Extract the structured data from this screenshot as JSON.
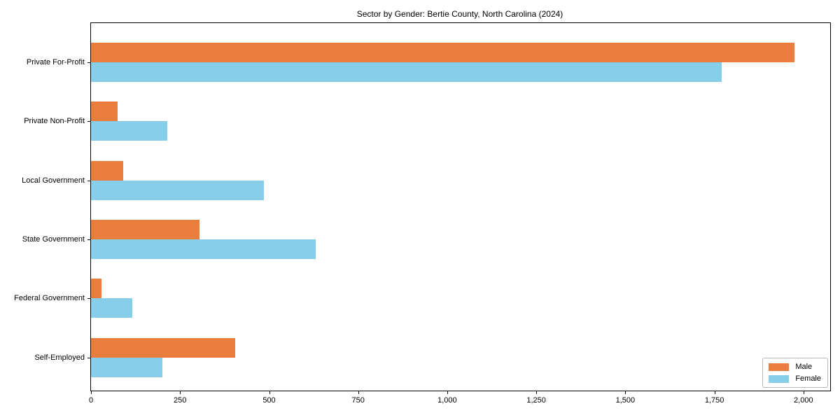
{
  "title": "Sector by Gender: Bertie County, North Carolina (2024)",
  "chart_data": {
    "type": "bar",
    "orientation": "horizontal",
    "title": "Sector by Gender: Bertie County, North Carolina (2024)",
    "categories": [
      "Private For-Profit",
      "Private Non-Profit",
      "Local Government",
      "State Government",
      "Federal Government",
      "Self-Employed"
    ],
    "series": [
      {
        "name": "Male",
        "color": "#e87d3e",
        "values": [
          1975,
          75,
          90,
          305,
          30,
          405
        ]
      },
      {
        "name": "Female",
        "color": "#87ceeb",
        "values": [
          1770,
          215,
          485,
          630,
          115,
          200
        ]
      }
    ],
    "xlabel": "",
    "ylabel": "",
    "xlim": [
      0,
      2075
    ],
    "xticks": {
      "values": [
        0,
        250,
        500,
        750,
        1000,
        1250,
        1500,
        1750,
        2000
      ],
      "labels": [
        "0",
        "250",
        "500",
        "750",
        "1,000",
        "1,250",
        "1,500",
        "1,750",
        "2,000"
      ]
    },
    "legend": {
      "position": "lower-right",
      "entries": [
        "Male",
        "Female"
      ]
    },
    "grid": false,
    "background": "#ffffff",
    "axis_color": "#000000"
  }
}
